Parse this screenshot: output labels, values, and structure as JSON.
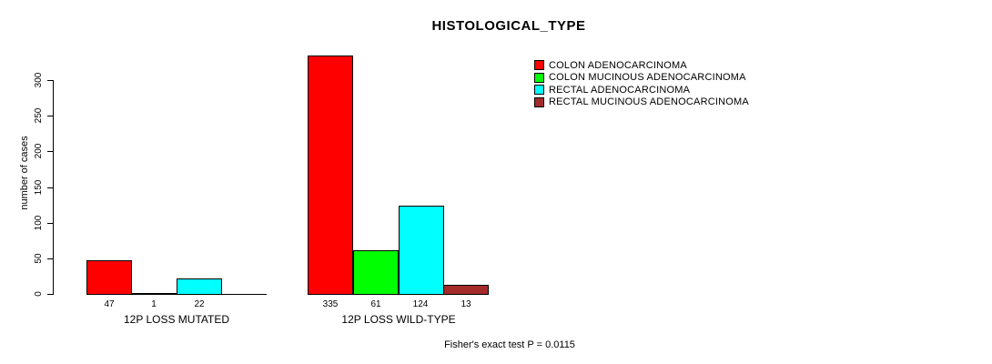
{
  "title": "HISTOLOGICAL_TYPE",
  "footer": "Fisher's exact test P = 0.0115",
  "chart_data": {
    "type": "bar",
    "title": "HISTOLOGICAL_TYPE",
    "xlabel": "",
    "ylabel": "number of cases",
    "ylim": [
      0,
      335
    ],
    "yticks": [
      0,
      50,
      100,
      150,
      200,
      250,
      300
    ],
    "grid": false,
    "legend_position": "top-right",
    "categories": [
      "12P LOSS MUTATED",
      "12P LOSS WILD-TYPE"
    ],
    "series": [
      {
        "name": "COLON ADENOCARCINOMA",
        "color": "#ff0000",
        "values": [
          47,
          335
        ]
      },
      {
        "name": "COLON MUCINOUS ADENOCARCINOMA",
        "color": "#00ff00",
        "values": [
          1,
          61
        ]
      },
      {
        "name": "RECTAL ADENOCARCINOMA",
        "color": "#00ffff",
        "values": [
          22,
          124
        ]
      },
      {
        "name": "RECTAL MUCINOUS ADENOCARCINOMA",
        "color": "#a52a2a",
        "values": [
          0,
          13
        ]
      }
    ],
    "bar_labels": [
      [
        "47",
        "1",
        "22",
        ""
      ],
      [
        "335",
        "61",
        "124",
        "13"
      ]
    ],
    "annotation": "Fisher's exact test P = 0.0115"
  }
}
